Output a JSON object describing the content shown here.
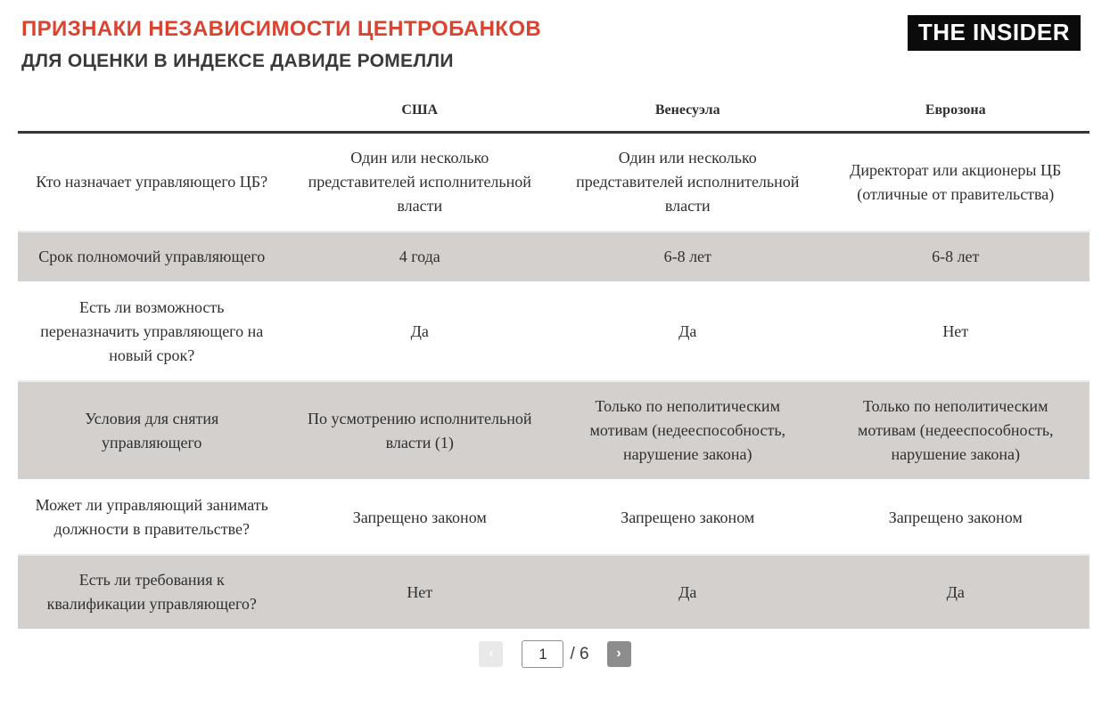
{
  "header": {
    "logo": "THE INSIDER"
  },
  "colors": {
    "accent_title": "#d9432f",
    "shaded_row": "#d3d0ce",
    "logo_background": "#0b0b0b",
    "next_button": "#8d8d8d"
  },
  "chart_data": {
    "type": "table",
    "title": "ПРИЗНАКИ НЕЗАВИСИМОСТИ ЦЕНТРОБАНКОВ",
    "subtitle": "ДЛЯ ОЦЕНКИ В ИНДЕКСЕ ДАВИДЕ РОМЕЛЛИ",
    "columns": [
      "",
      "США",
      "Венесуэла",
      "Еврозона"
    ],
    "rows": [
      {
        "question": "Кто назначает управляющего ЦБ?",
        "values": [
          "Один или несколько представителей исполнительной власти",
          "Один или несколько представителей исполнительной власти",
          "Директорат или акционеры ЦБ (отличные от правительства)"
        ],
        "shaded": false
      },
      {
        "question": "Срок полномочий управляющего",
        "values": [
          "4 года",
          "6-8 лет",
          "6-8 лет"
        ],
        "shaded": true
      },
      {
        "question": "Есть ли возможность переназначить управляющего на новый срок?",
        "values": [
          "Да",
          "Да",
          "Нет"
        ],
        "shaded": false
      },
      {
        "question": "Условия для снятия управляющего",
        "values": [
          "По усмотрению исполнительной власти (1)",
          "Только по неполитическим мотивам (недееспособность, нарушение закона)",
          "Только по неполитическим мотивам (недееспособность, нарушение закона)"
        ],
        "shaded": true
      },
      {
        "question": "Может ли управляющий занимать должности в правительстве?",
        "values": [
          "Запрещено законом",
          "Запрещено законом",
          "Запрещено законом"
        ],
        "shaded": false
      },
      {
        "question": "Есть ли требования к квалификации управляющего?",
        "values": [
          "Нет",
          "Да",
          "Да"
        ],
        "shaded": true
      }
    ]
  },
  "pagination": {
    "current_page": "1",
    "total_pages_label": "/ 6",
    "prev_icon": "‹",
    "next_icon": "›"
  }
}
